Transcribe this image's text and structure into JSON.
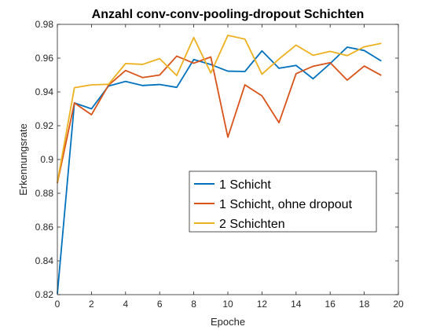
{
  "chart_data": {
    "type": "line",
    "title": "Anzahl conv-conv-pooling-dropout Schichten",
    "xlabel": "Epoche",
    "ylabel": "Erkennungsrate",
    "xlim": [
      0,
      20
    ],
    "ylim": [
      0.82,
      0.98
    ],
    "xticks": [
      "0",
      "2",
      "4",
      "6",
      "8",
      "10",
      "12",
      "14",
      "16",
      "18",
      "20"
    ],
    "yticks": [
      "0.82",
      "0.84",
      "0.86",
      "0.88",
      "0.9",
      "0.92",
      "0.94",
      "0.96",
      "0.98"
    ],
    "grid": false,
    "legend_position": "center-right",
    "x": [
      0,
      1,
      2,
      3,
      4,
      5,
      6,
      7,
      8,
      9,
      10,
      11,
      12,
      13,
      14,
      15,
      16,
      17,
      18,
      19
    ],
    "series": [
      {
        "name": "1 Schicht",
        "color": "#0072BD",
        "values": [
          0.8205,
          0.9335,
          0.93,
          0.9435,
          0.9462,
          0.9438,
          0.9444,
          0.9427,
          0.9592,
          0.9562,
          0.9523,
          0.9521,
          0.9643,
          0.954,
          0.9557,
          0.9478,
          0.9568,
          0.9665,
          0.9645,
          0.9583
        ]
      },
      {
        "name": "1 Schicht, ohne dropout",
        "color": "#D95319",
        "values": [
          0.886,
          0.9335,
          0.9265,
          0.944,
          0.9527,
          0.9485,
          0.95,
          0.9612,
          0.957,
          0.9607,
          0.9132,
          0.9442,
          0.9377,
          0.9218,
          0.9508,
          0.9552,
          0.9573,
          0.947,
          0.9553,
          0.9498
        ]
      },
      {
        "name": "2 Schichten",
        "color": "#EDB120",
        "values": [
          0.8865,
          0.9425,
          0.9442,
          0.9445,
          0.9568,
          0.9563,
          0.9597,
          0.9497,
          0.9722,
          0.9512,
          0.9735,
          0.9713,
          0.9505,
          0.9595,
          0.9677,
          0.9617,
          0.964,
          0.9615,
          0.9667,
          0.9688
        ]
      }
    ]
  }
}
